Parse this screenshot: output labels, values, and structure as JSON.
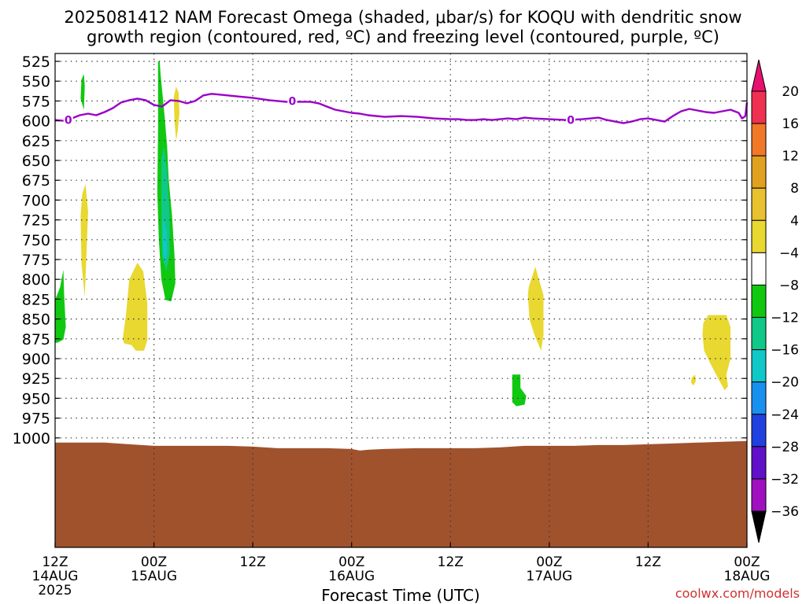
{
  "chart_data": {
    "type": "heatmap",
    "title_lines": [
      "2025081412 NAM Forecast Omega (shaded, μbar/s) for KOQU with dendritic snow",
      "growth region (contoured, red, ºC) and freezing level (contoured, purple, ºC)"
    ],
    "xlabel": "Forecast Time (UTC)",
    "ylabel": "",
    "credit": "coolwx.com/models",
    "x_unit": "hours since 2025-08-14 12Z",
    "xlim": [
      0,
      84
    ],
    "ylim": [
      525,
      1020
    ],
    "y_scale": "reversed",
    "grid": true,
    "y_ticks": [
      525,
      550,
      575,
      600,
      625,
      650,
      675,
      700,
      725,
      750,
      775,
      800,
      825,
      850,
      875,
      900,
      925,
      950,
      975,
      1000
    ],
    "x_ticks": [
      {
        "x": 0,
        "label": "12Z",
        "date": "14AUG",
        "year": "2025"
      },
      {
        "x": 12,
        "label": "00Z",
        "date": "15AUG",
        "year": ""
      },
      {
        "x": 24,
        "label": "12Z",
        "date": "",
        "year": ""
      },
      {
        "x": 36,
        "label": "00Z",
        "date": "16AUG",
        "year": ""
      },
      {
        "x": 48,
        "label": "12Z",
        "date": "",
        "year": ""
      },
      {
        "x": 60,
        "label": "00Z",
        "date": "17AUG",
        "year": ""
      },
      {
        "x": 72,
        "label": "12Z",
        "date": "",
        "year": ""
      },
      {
        "x": 84,
        "label": "00Z",
        "date": "18AUG",
        "year": ""
      }
    ],
    "colorbar": {
      "labels": [
        "20",
        "16",
        "12",
        "8",
        "4",
        "−4",
        "−8",
        "−12",
        "−16",
        "−20",
        "−24",
        "−28",
        "−32",
        "−36"
      ],
      "top_arrow_color": "#e8106e",
      "bottom_arrow_color": "#000000",
      "bins": [
        {
          "range": ">20",
          "color": "#f03050"
        },
        {
          "range": "16 to 20",
          "color": "#f07828"
        },
        {
          "range": "12 to 16",
          "color": "#e0a020"
        },
        {
          "range": "8 to 12",
          "color": "#e8c030"
        },
        {
          "range": "4 to 8",
          "color": "#e8d830"
        },
        {
          "range": "-4 to 4",
          "color": "#ffffff"
        },
        {
          "range": "-8 to -4",
          "color": "#10c810"
        },
        {
          "range": "-12 to -8",
          "color": "#10c888"
        },
        {
          "range": "-16 to -12",
          "color": "#10c8c8"
        },
        {
          "range": "-20 to -16",
          "color": "#1890f0"
        },
        {
          "range": "-24 to -20",
          "color": "#2040e0"
        },
        {
          "range": "-28 to -24",
          "color": "#6010c8"
        },
        {
          "range": "-32 to -28",
          "color": "#a010c0"
        },
        {
          "range": "-36 to -32",
          "color": "#a8a8a8"
        }
      ]
    },
    "freezing_level": {
      "label": "0",
      "color": "#9a00c8",
      "label_points": [
        [
          1.6,
          599
        ],
        [
          28.8,
          575
        ],
        [
          62.6,
          599
        ]
      ],
      "points": [
        [
          0,
          599
        ],
        [
          1,
          600
        ],
        [
          2,
          597
        ],
        [
          3,
          593
        ],
        [
          4,
          591
        ],
        [
          5,
          593
        ],
        [
          6,
          589
        ],
        [
          7,
          584
        ],
        [
          8,
          577
        ],
        [
          9,
          574
        ],
        [
          10,
          572
        ],
        [
          11,
          574
        ],
        [
          12,
          580
        ],
        [
          13,
          582
        ],
        [
          14,
          574
        ],
        [
          15,
          575
        ],
        [
          16,
          578
        ],
        [
          17,
          575
        ],
        [
          18,
          568
        ],
        [
          19,
          566
        ],
        [
          20,
          567
        ],
        [
          22,
          569
        ],
        [
          24,
          571
        ],
        [
          26,
          574
        ],
        [
          28,
          576
        ],
        [
          30,
          576
        ],
        [
          31,
          576
        ],
        [
          32,
          578
        ],
        [
          33,
          582
        ],
        [
          34,
          586
        ],
        [
          35,
          588
        ],
        [
          36,
          590
        ],
        [
          37,
          591
        ],
        [
          38,
          593
        ],
        [
          40,
          595
        ],
        [
          42,
          594
        ],
        [
          44,
          595
        ],
        [
          46,
          597
        ],
        [
          48,
          598
        ],
        [
          49,
          598
        ],
        [
          50,
          599
        ],
        [
          51,
          599
        ],
        [
          52,
          598
        ],
        [
          53,
          599
        ],
        [
          54,
          598
        ],
        [
          55,
          597
        ],
        [
          56,
          598
        ],
        [
          57,
          596
        ],
        [
          58,
          597
        ],
        [
          60,
          598
        ],
        [
          62,
          599
        ],
        [
          64,
          598
        ],
        [
          65,
          597
        ],
        [
          66,
          596
        ],
        [
          67,
          599
        ],
        [
          68,
          601
        ],
        [
          69,
          603
        ],
        [
          70,
          601
        ],
        [
          71,
          598
        ],
        [
          72,
          597
        ],
        [
          73,
          599
        ],
        [
          74,
          601
        ],
        [
          75,
          594
        ],
        [
          76,
          588
        ],
        [
          77,
          585
        ],
        [
          78,
          587
        ],
        [
          79,
          589
        ],
        [
          80,
          590
        ],
        [
          81,
          588
        ],
        [
          82,
          586
        ],
        [
          83,
          590
        ],
        [
          83.4,
          597
        ],
        [
          83.8,
          594
        ],
        [
          84,
          577
        ]
      ]
    },
    "terrain": {
      "color": "#a0522d",
      "points": [
        [
          0,
          1006
        ],
        [
          3,
          1006
        ],
        [
          6,
          1006
        ],
        [
          9,
          1008
        ],
        [
          12,
          1010
        ],
        [
          15,
          1010
        ],
        [
          18,
          1010
        ],
        [
          21,
          1010
        ],
        [
          24,
          1011
        ],
        [
          27,
          1013
        ],
        [
          30,
          1013
        ],
        [
          33,
          1013
        ],
        [
          36,
          1014
        ],
        [
          37,
          1016
        ],
        [
          38,
          1015
        ],
        [
          40,
          1014
        ],
        [
          44,
          1013
        ],
        [
          48,
          1013
        ],
        [
          51,
          1013
        ],
        [
          54,
          1012
        ],
        [
          57,
          1010
        ],
        [
          60,
          1010
        ],
        [
          63,
          1010
        ],
        [
          66,
          1009
        ],
        [
          69,
          1009
        ],
        [
          72,
          1008
        ],
        [
          75,
          1007
        ],
        [
          78,
          1006
        ],
        [
          81,
          1005
        ],
        [
          84,
          1004
        ]
      ]
    },
    "omega_regions": [
      {
        "value": -6,
        "color": "#10c810",
        "points": [
          [
            3.2,
            548
          ],
          [
            3.5,
            541
          ],
          [
            3.6,
            556
          ],
          [
            3.5,
            586
          ],
          [
            3.1,
            572
          ]
        ]
      },
      {
        "value": 6,
        "color": "#e8d830",
        "points": [
          [
            3.3,
            692
          ],
          [
            3.7,
            680
          ],
          [
            4.0,
            715
          ],
          [
            3.8,
            770
          ],
          [
            3.6,
            822
          ],
          [
            3.2,
            780
          ],
          [
            3.1,
            720
          ]
        ]
      },
      {
        "value": -6,
        "color": "#10c810",
        "points": [
          [
            0,
            826
          ],
          [
            0.6,
            810
          ],
          [
            1.0,
            788
          ],
          [
            1.1,
            820
          ],
          [
            1.3,
            860
          ],
          [
            1.0,
            876
          ],
          [
            0.3,
            880
          ],
          [
            0,
            880
          ]
        ]
      },
      {
        "value": 6,
        "color": "#e8d830",
        "points": [
          [
            8.2,
            876
          ],
          [
            8.6,
            845
          ],
          [
            9.0,
            800
          ],
          [
            10.0,
            779
          ],
          [
            10.7,
            790
          ],
          [
            11.2,
            830
          ],
          [
            11.2,
            877
          ],
          [
            10.8,
            890
          ],
          [
            9.8,
            890
          ],
          [
            9.3,
            883
          ],
          [
            8.4,
            881
          ]
        ]
      },
      {
        "value": -6,
        "color": "#10c810",
        "points": [
          [
            12.5,
            525
          ],
          [
            12.7,
            525
          ],
          [
            12.8,
            540
          ],
          [
            13.0,
            562
          ],
          [
            13.3,
            595
          ],
          [
            13.6,
            632
          ],
          [
            13.8,
            675
          ],
          [
            14.2,
            720
          ],
          [
            14.5,
            770
          ],
          [
            14.6,
            805
          ],
          [
            14.1,
            828
          ],
          [
            13.4,
            826
          ],
          [
            12.9,
            800
          ],
          [
            12.6,
            750
          ],
          [
            12.4,
            690
          ],
          [
            12.5,
            610
          ]
        ]
      },
      {
        "value": -10,
        "color": "#10c888",
        "points": [
          [
            12.9,
            648
          ],
          [
            13.2,
            632
          ],
          [
            13.6,
            662
          ],
          [
            13.9,
            720
          ],
          [
            13.9,
            768
          ],
          [
            13.5,
            790
          ],
          [
            13.0,
            770
          ],
          [
            12.9,
            720
          ]
        ]
      },
      {
        "value": -14,
        "color": "#10c8c8",
        "points": [
          [
            13.1,
            720
          ],
          [
            13.5,
            740
          ],
          [
            13.6,
            768
          ],
          [
            13.3,
            780
          ],
          [
            13.1,
            760
          ]
        ]
      },
      {
        "value": 6,
        "color": "#e8d830",
        "points": [
          [
            14.7,
            557
          ],
          [
            15.0,
            565
          ],
          [
            15.1,
            590
          ],
          [
            14.9,
            612
          ],
          [
            14.7,
            625
          ],
          [
            14.5,
            600
          ],
          [
            14.4,
            570
          ]
        ]
      },
      {
        "value": 6,
        "color": "#e8d830",
        "points": [
          [
            57.5,
            810
          ],
          [
            58.3,
            784
          ],
          [
            59.3,
            820
          ],
          [
            59.3,
            870
          ],
          [
            59.0,
            890
          ],
          [
            58.2,
            870
          ],
          [
            57.6,
            850
          ],
          [
            57.4,
            820
          ]
        ]
      },
      {
        "value": -6,
        "color": "#10c810",
        "points": [
          [
            55.5,
            920
          ],
          [
            56.5,
            920
          ],
          [
            56.5,
            937
          ],
          [
            57.2,
            947
          ],
          [
            57.0,
            958
          ],
          [
            56.0,
            960
          ],
          [
            55.5,
            955
          ]
        ]
      },
      {
        "value": 6,
        "color": "#e8d830",
        "points": [
          [
            78.7,
            855
          ],
          [
            79.3,
            845
          ],
          [
            81.5,
            845
          ],
          [
            82.0,
            860
          ],
          [
            82.0,
            900
          ],
          [
            81.5,
            920
          ],
          [
            81.7,
            935
          ],
          [
            81.3,
            940
          ],
          [
            80.5,
            925
          ],
          [
            79.5,
            905
          ],
          [
            78.8,
            890
          ],
          [
            78.6,
            870
          ]
        ]
      },
      {
        "value": 6,
        "color": "#e8d830",
        "points": [
          [
            77.3,
            924
          ],
          [
            77.7,
            920
          ],
          [
            77.8,
            928
          ],
          [
            77.5,
            934
          ],
          [
            77.2,
            930
          ]
        ]
      }
    ]
  }
}
